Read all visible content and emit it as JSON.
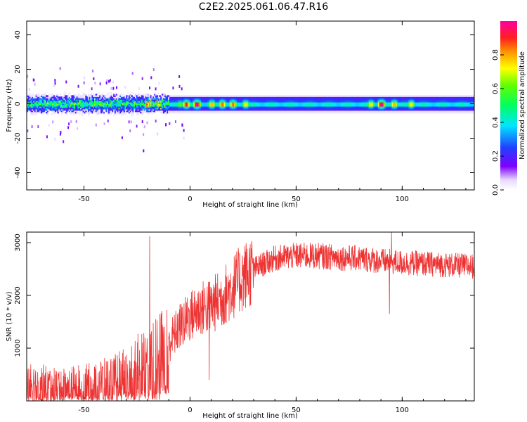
{
  "title": "C2E2.2025.061.06.47.R16",
  "chart_data": [
    {
      "type": "heatmap",
      "xlabel": "Height of straight line (km)",
      "ylabel": "Frequency (Hz)",
      "xlim": [
        -77,
        134
      ],
      "ylim": [
        -50,
        48
      ],
      "x_ticks": [
        -50,
        0,
        50,
        100
      ],
      "y_ticks": [
        -40,
        -20,
        0,
        20,
        40
      ],
      "x_tick_labels": [
        "-50",
        "0",
        "50",
        "100"
      ],
      "y_tick_labels": [
        "-40",
        "-20",
        "0",
        "20",
        "40"
      ],
      "colorbar": {
        "label": "Normalized spectral amplitude",
        "range": [
          0,
          1
        ],
        "ticks": [
          0,
          0.2,
          0.4,
          0.6,
          0.8
        ],
        "tick_labels": [
          "0.0",
          "0.2",
          "0.4",
          "0.6",
          "0.8"
        ]
      },
      "band": {
        "center_frequency_hz": 0,
        "half_width_hz": 4,
        "noisy_region_km": [
          -77,
          -10
        ]
      },
      "hotspots": [
        {
          "x_km": -20,
          "amplitude": 0.85
        },
        {
          "x_km": -15,
          "amplitude": 0.8
        },
        {
          "x_km": -5,
          "amplitude": 0.6
        },
        {
          "x_km": -2,
          "amplitude": 0.9
        },
        {
          "x_km": 3,
          "amplitude": 1.0
        },
        {
          "x_km": 10,
          "amplitude": 0.8
        },
        {
          "x_km": 15,
          "amplitude": 0.85
        },
        {
          "x_km": 20,
          "amplitude": 0.85
        },
        {
          "x_km": 26,
          "amplitude": 0.75
        },
        {
          "x_km": 85,
          "amplitude": 0.75
        },
        {
          "x_km": 90,
          "amplitude": 1.0
        },
        {
          "x_km": 96,
          "amplitude": 0.8
        },
        {
          "x_km": 104,
          "amplitude": 0.75
        }
      ]
    },
    {
      "type": "line",
      "xlabel": "Height of straight line (km)",
      "ylabel": "SNR (10 * v/v)",
      "xlim": [
        -77,
        134
      ],
      "ylim": [
        0,
        3200
      ],
      "x_ticks": [
        -50,
        0,
        50,
        100
      ],
      "y_ticks": [
        1000,
        2000,
        3000
      ],
      "x_tick_labels": [
        "-50",
        "0",
        "50",
        "100"
      ],
      "y_tick_labels": [
        "1000",
        "2000",
        "3000"
      ],
      "color": "#ee3333",
      "trend": {
        "x": [
          -77,
          -60,
          -45,
          -35,
          -25,
          -15,
          -10,
          -5,
          0,
          5,
          10,
          15,
          20,
          25,
          30,
          35,
          40,
          50,
          60,
          70,
          80,
          90,
          100,
          110,
          120,
          134
        ],
        "y": [
          350,
          300,
          350,
          450,
          650,
          850,
          1100,
          1400,
          1600,
          1750,
          1800,
          1950,
          2150,
          2350,
          2500,
          2600,
          2700,
          2750,
          2750,
          2720,
          2700,
          2650,
          2620,
          2600,
          2580,
          2550
        ]
      },
      "spikes": [
        {
          "x": -19,
          "y": 3120
        },
        {
          "x": 9,
          "y": 400
        },
        {
          "x": 94,
          "y": 1650
        },
        {
          "x": 95,
          "y": 3200
        }
      ]
    }
  ]
}
